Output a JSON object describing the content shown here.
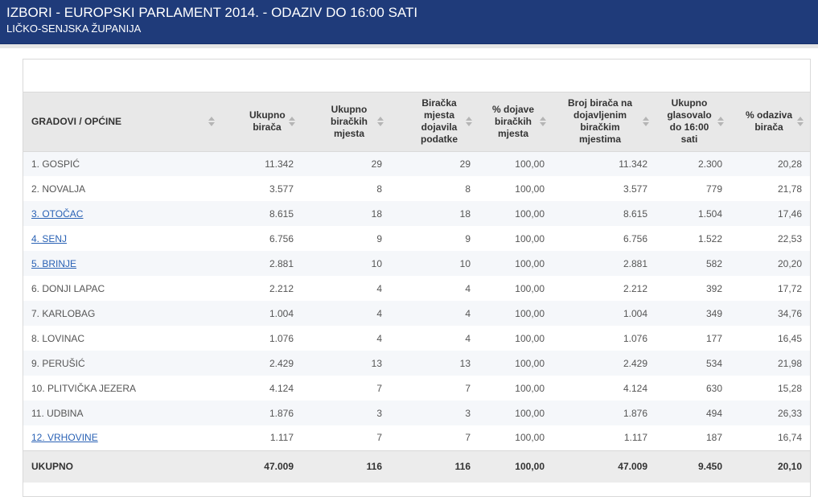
{
  "header": {
    "title": "IZBORI - EUROPSKI PARLAMENT 2014. - ODAZIV DO 16:00 SATI",
    "subtitle": "LIČKO-SENJSKA ŽUPANIJA",
    "background_color": "#1f3b7a"
  },
  "table": {
    "columns": [
      "GRADOVI / OPĆINE",
      "Ukupno birača",
      "Ukupno biračkih mjesta",
      "Biračka mjesta dojavila podatke",
      "% dojave biračkih mjesta",
      "Broj birača na dojavljenim biračkim mjestima",
      "Ukupno glasovalo do 16:00 sati",
      "% odaziva birača"
    ],
    "sort_icon": "sort-arrows-icon",
    "link_color": "#2a62b5",
    "rows": [
      {
        "name": "1. GOSPIĆ",
        "link": false,
        "birača": "11.342",
        "mjesta": "29",
        "dojavila": "29",
        "pct_dojave": "100,00",
        "broj": "11.342",
        "glasovalo": "2.300",
        "odaziv": "20,28"
      },
      {
        "name": "2. NOVALJA",
        "link": false,
        "birača": "3.577",
        "mjesta": "8",
        "dojavila": "8",
        "pct_dojave": "100,00",
        "broj": "3.577",
        "glasovalo": "779",
        "odaziv": "21,78"
      },
      {
        "name": "3. OTOČAC",
        "link": true,
        "birača": "8.615",
        "mjesta": "18",
        "dojavila": "18",
        "pct_dojave": "100,00",
        "broj": "8.615",
        "glasovalo": "1.504",
        "odaziv": "17,46"
      },
      {
        "name": "4. SENJ",
        "link": true,
        "birača": "6.756",
        "mjesta": "9",
        "dojavila": "9",
        "pct_dojave": "100,00",
        "broj": "6.756",
        "glasovalo": "1.522",
        "odaziv": "22,53"
      },
      {
        "name": "5. BRINJE",
        "link": true,
        "birača": "2.881",
        "mjesta": "10",
        "dojavila": "10",
        "pct_dojave": "100,00",
        "broj": "2.881",
        "glasovalo": "582",
        "odaziv": "20,20"
      },
      {
        "name": "6. DONJI LAPAC",
        "link": false,
        "birača": "2.212",
        "mjesta": "4",
        "dojavila": "4",
        "pct_dojave": "100,00",
        "broj": "2.212",
        "glasovalo": "392",
        "odaziv": "17,72"
      },
      {
        "name": "7. KARLOBAG",
        "link": false,
        "birača": "1.004",
        "mjesta": "4",
        "dojavila": "4",
        "pct_dojave": "100,00",
        "broj": "1.004",
        "glasovalo": "349",
        "odaziv": "34,76"
      },
      {
        "name": "8. LOVINAC",
        "link": false,
        "birača": "1.076",
        "mjesta": "4",
        "dojavila": "4",
        "pct_dojave": "100,00",
        "broj": "1.076",
        "glasovalo": "177",
        "odaziv": "16,45"
      },
      {
        "name": "9. PERUŠIĆ",
        "link": false,
        "birača": "2.429",
        "mjesta": "13",
        "dojavila": "13",
        "pct_dojave": "100,00",
        "broj": "2.429",
        "glasovalo": "534",
        "odaziv": "21,98"
      },
      {
        "name": "10. PLITVIČKA JEZERA",
        "link": false,
        "birača": "4.124",
        "mjesta": "7",
        "dojavila": "7",
        "pct_dojave": "100,00",
        "broj": "4.124",
        "glasovalo": "630",
        "odaziv": "15,28"
      },
      {
        "name": "11. UDBINA",
        "link": false,
        "birača": "1.876",
        "mjesta": "3",
        "dojavila": "3",
        "pct_dojave": "100,00",
        "broj": "1.876",
        "glasovalo": "494",
        "odaziv": "26,33"
      },
      {
        "name": "12. VRHOVINE",
        "link": true,
        "birača": "1.117",
        "mjesta": "7",
        "dojavila": "7",
        "pct_dojave": "100,00",
        "broj": "1.117",
        "glasovalo": "187",
        "odaziv": "16,74"
      }
    ],
    "total": {
      "name": "UKUPNO",
      "birača": "47.009",
      "mjesta": "116",
      "dojavila": "116",
      "pct_dojave": "100,00",
      "broj": "47.009",
      "glasovalo": "9.450",
      "odaziv": "20,10"
    }
  }
}
